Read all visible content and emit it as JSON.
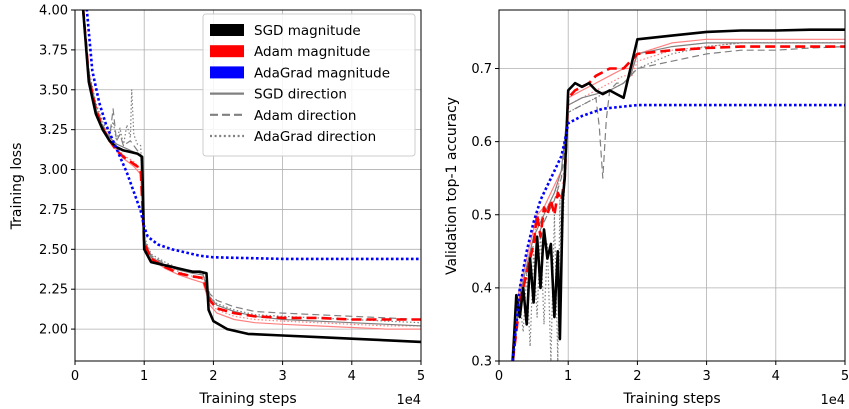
{
  "chart_data": [
    {
      "type": "line",
      "xlabel": "Training steps",
      "ylabel": "Training loss",
      "x_offset_text": "1e4",
      "xlim": [
        0,
        5
      ],
      "ylim": [
        1.8,
        4.0
      ],
      "xticks": [
        0,
        1,
        2,
        3,
        4,
        5
      ],
      "yticks": [
        2.0,
        2.25,
        2.5,
        2.75,
        3.0,
        3.25,
        3.5,
        3.75,
        4.0
      ],
      "ytick_labels": [
        "2.00",
        "2.25",
        "2.50",
        "2.75",
        "3.00",
        "3.25",
        "3.50",
        "3.75",
        "4.00"
      ],
      "grid": true,
      "legend": {
        "placement": "top-right",
        "entries": [
          {
            "label": "SGD magnitude",
            "color": "#000000",
            "style": "patch"
          },
          {
            "label": "Adam magnitude",
            "color": "#ff0000",
            "style": "patch"
          },
          {
            "label": "AdaGrad magnitude",
            "color": "#0000ff",
            "style": "patch"
          },
          {
            "label": "SGD direction",
            "color": "#808080",
            "style": "solid"
          },
          {
            "label": "Adam direction",
            "color": "#808080",
            "style": "dashed"
          },
          {
            "label": "AdaGrad direction",
            "color": "#808080",
            "style": "dotted"
          }
        ]
      },
      "series": [
        {
          "color": "#ff8080",
          "style": "solid",
          "width": 1.2,
          "x": [
            0.1,
            0.2,
            0.3,
            0.4,
            0.55,
            0.7,
            0.85,
            0.95,
            1.0,
            1.1,
            1.3,
            1.5,
            1.7,
            1.85,
            1.95,
            2.05,
            2.3,
            2.6,
            3.0,
            3.5,
            4.0,
            4.5,
            5.0
          ],
          "y": [
            4.1,
            3.6,
            3.38,
            3.25,
            3.15,
            3.07,
            3.02,
            2.97,
            2.52,
            2.44,
            2.38,
            2.34,
            2.31,
            2.29,
            2.15,
            2.1,
            2.06,
            2.04,
            2.03,
            2.02,
            2.01,
            2.0,
            2.0
          ]
        },
        {
          "color": "#ff8080",
          "style": "dotted",
          "width": 1.2,
          "x": [
            0.1,
            0.2,
            0.3,
            0.4,
            0.55,
            0.7,
            0.85,
            0.95,
            1.0,
            1.1,
            1.3,
            1.5,
            1.7,
            1.85,
            1.95,
            2.05,
            2.3,
            2.6,
            3.0,
            3.5,
            4.0,
            4.5,
            5.0
          ],
          "y": [
            4.1,
            3.62,
            3.4,
            3.27,
            3.17,
            3.09,
            3.05,
            3.0,
            2.55,
            2.46,
            2.4,
            2.36,
            2.33,
            2.31,
            2.17,
            2.12,
            2.08,
            2.06,
            2.05,
            2.04,
            2.03,
            2.02,
            2.02
          ]
        },
        {
          "color": "#808080",
          "style": "dotted",
          "width": 1.2,
          "x": [
            0.1,
            0.2,
            0.3,
            0.4,
            0.5,
            0.55,
            0.6,
            0.65,
            0.7,
            0.75,
            0.8,
            0.82,
            0.85,
            0.9,
            0.95,
            1.0,
            1.1,
            1.3,
            1.5,
            1.7,
            1.85,
            1.95,
            2.05,
            2.3,
            2.6,
            3.0,
            3.5,
            4.0,
            4.5,
            5.0
          ],
          "y": [
            4.1,
            3.62,
            3.42,
            3.3,
            3.22,
            3.3,
            3.18,
            3.26,
            3.15,
            3.28,
            3.2,
            3.5,
            3.22,
            3.16,
            3.15,
            2.58,
            2.47,
            2.42,
            2.38,
            2.36,
            2.35,
            2.2,
            2.16,
            2.12,
            2.09,
            2.08,
            2.07,
            2.06,
            2.05,
            2.04
          ]
        },
        {
          "color": "#808080",
          "style": "dashed",
          "width": 1.2,
          "x": [
            0.1,
            0.2,
            0.3,
            0.4,
            0.5,
            0.55,
            0.6,
            0.65,
            0.7,
            0.8,
            0.9,
            0.95,
            1.0,
            1.1,
            1.3,
            1.5,
            1.7,
            1.85,
            1.95,
            2.05,
            2.3,
            2.6,
            3.0,
            3.5,
            4.0,
            4.5,
            5.0
          ],
          "y": [
            4.1,
            3.6,
            3.4,
            3.28,
            3.2,
            3.38,
            3.18,
            3.22,
            3.15,
            3.18,
            3.12,
            3.1,
            2.56,
            2.46,
            2.41,
            2.38,
            2.35,
            2.34,
            2.22,
            2.18,
            2.14,
            2.11,
            2.1,
            2.09,
            2.08,
            2.07,
            2.06
          ]
        },
        {
          "color": "#808080",
          "style": "solid",
          "width": 1.2,
          "x": [
            0.1,
            0.2,
            0.3,
            0.4,
            0.5,
            0.6,
            0.7,
            0.8,
            0.9,
            0.95,
            1.0,
            1.1,
            1.3,
            1.5,
            1.7,
            1.85,
            1.95,
            2.05,
            2.3,
            2.6,
            3.0,
            3.5,
            4.0,
            4.5,
            5.0
          ],
          "y": [
            4.1,
            3.6,
            3.38,
            3.26,
            3.2,
            3.16,
            3.14,
            3.12,
            3.1,
            3.08,
            2.55,
            2.45,
            2.4,
            2.37,
            2.35,
            2.34,
            2.2,
            2.15,
            2.11,
            2.08,
            2.06,
            2.05,
            2.04,
            2.03,
            2.02
          ]
        },
        {
          "color": "#ff0000",
          "style": "dashed",
          "width": 2.6,
          "x": [
            0.1,
            0.2,
            0.3,
            0.4,
            0.5,
            0.6,
            0.7,
            0.8,
            0.9,
            0.95,
            1.0,
            1.1,
            1.3,
            1.5,
            1.7,
            1.85,
            1.95,
            2.05,
            2.3,
            2.6,
            3.0,
            3.5,
            4.0,
            4.5,
            5.0
          ],
          "y": [
            4.1,
            3.58,
            3.38,
            3.26,
            3.18,
            3.12,
            3.08,
            3.05,
            3.02,
            3.0,
            2.54,
            2.44,
            2.39,
            2.35,
            2.33,
            2.32,
            2.18,
            2.13,
            2.1,
            2.08,
            2.07,
            2.07,
            2.06,
            2.06,
            2.06
          ]
        },
        {
          "color": "#000000",
          "style": "solid",
          "width": 2.6,
          "x": [
            0.1,
            0.2,
            0.3,
            0.4,
            0.5,
            0.6,
            0.7,
            0.8,
            0.9,
            0.97,
            1.0,
            1.1,
            1.2,
            1.3,
            1.4,
            1.5,
            1.6,
            1.7,
            1.8,
            1.9,
            1.93,
            2.0,
            2.2,
            2.5,
            3.0,
            3.5,
            4.0,
            4.5,
            5.0
          ],
          "y": [
            4.1,
            3.55,
            3.35,
            3.25,
            3.18,
            3.14,
            3.12,
            3.11,
            3.1,
            3.08,
            2.5,
            2.42,
            2.41,
            2.4,
            2.39,
            2.38,
            2.37,
            2.36,
            2.36,
            2.35,
            2.12,
            2.05,
            2.0,
            1.97,
            1.96,
            1.95,
            1.94,
            1.93,
            1.92
          ]
        },
        {
          "color": "#0000ff",
          "style": "dotted",
          "width": 2.6,
          "x": [
            0.15,
            0.25,
            0.35,
            0.45,
            0.55,
            0.65,
            0.75,
            0.85,
            0.95,
            1.0,
            1.05,
            1.2,
            1.4,
            1.6,
            1.8,
            2.0,
            2.5,
            3.0,
            3.5,
            4.0,
            4.5,
            5.0
          ],
          "y": [
            4.1,
            3.62,
            3.42,
            3.28,
            3.18,
            3.08,
            2.98,
            2.86,
            2.74,
            2.64,
            2.58,
            2.53,
            2.5,
            2.48,
            2.46,
            2.45,
            2.445,
            2.44,
            2.44,
            2.44,
            2.44,
            2.44
          ]
        }
      ]
    },
    {
      "type": "line",
      "xlabel": "Training steps",
      "ylabel": "Validation top-1 accuracy",
      "x_offset_text": "1e4",
      "xlim": [
        0,
        5
      ],
      "ylim": [
        0.3,
        0.78
      ],
      "xticks": [
        0,
        1,
        2,
        3,
        4,
        5
      ],
      "yticks": [
        0.3,
        0.4,
        0.5,
        0.6,
        0.7
      ],
      "ytick_labels": [
        "0.3",
        "0.4",
        "0.5",
        "0.6",
        "0.7"
      ],
      "grid": true,
      "series": [
        {
          "color": "#ff8080",
          "style": "solid",
          "width": 1.2,
          "x": [
            0.18,
            0.25,
            0.35,
            0.45,
            0.55,
            0.65,
            0.75,
            0.85,
            0.95,
            1.0,
            1.2,
            1.4,
            1.6,
            1.8,
            1.92,
            2.0,
            2.5,
            3.0,
            3.5,
            4.0,
            4.5,
            5.0
          ],
          "y": [
            0.3,
            0.38,
            0.42,
            0.46,
            0.5,
            0.51,
            0.53,
            0.55,
            0.57,
            0.66,
            0.67,
            0.68,
            0.69,
            0.7,
            0.7,
            0.72,
            0.735,
            0.74,
            0.74,
            0.74,
            0.74,
            0.74
          ]
        },
        {
          "color": "#ff8080",
          "style": "dotted",
          "width": 1.2,
          "x": [
            0.18,
            0.25,
            0.35,
            0.45,
            0.55,
            0.65,
            0.75,
            0.85,
            0.95,
            1.0,
            1.2,
            1.4,
            1.6,
            1.8,
            1.92,
            2.0,
            2.5,
            3.0,
            3.5,
            4.0,
            4.5,
            5.0
          ],
          "y": [
            0.3,
            0.37,
            0.41,
            0.45,
            0.49,
            0.5,
            0.52,
            0.54,
            0.56,
            0.65,
            0.66,
            0.67,
            0.68,
            0.69,
            0.69,
            0.71,
            0.725,
            0.73,
            0.735,
            0.735,
            0.735,
            0.735
          ]
        },
        {
          "color": "#808080",
          "style": "dotted",
          "width": 1.2,
          "x": [
            0.2,
            0.3,
            0.35,
            0.4,
            0.45,
            0.5,
            0.55,
            0.6,
            0.65,
            0.7,
            0.75,
            0.8,
            0.85,
            0.88,
            0.9,
            0.95,
            1.0,
            1.2,
            1.4,
            1.6,
            1.8,
            2.0,
            2.5,
            3.0,
            3.5,
            4.0,
            4.5,
            5.0
          ],
          "y": [
            0.3,
            0.38,
            0.34,
            0.42,
            0.32,
            0.45,
            0.36,
            0.48,
            0.35,
            0.46,
            0.3,
            0.5,
            0.3,
            0.52,
            0.42,
            0.55,
            0.64,
            0.65,
            0.66,
            0.67,
            0.68,
            0.7,
            0.72,
            0.73,
            0.735,
            0.735,
            0.735,
            0.735
          ]
        },
        {
          "color": "#808080",
          "style": "dashed",
          "width": 1.2,
          "x": [
            0.2,
            0.3,
            0.4,
            0.5,
            0.6,
            0.7,
            0.8,
            0.9,
            1.0,
            1.1,
            1.2,
            1.3,
            1.4,
            1.45,
            1.5,
            1.55,
            1.6,
            1.7,
            1.8,
            1.9,
            2.0,
            2.5,
            3.0,
            3.5,
            4.0,
            4.5,
            5.0
          ],
          "y": [
            0.3,
            0.38,
            0.42,
            0.46,
            0.48,
            0.5,
            0.52,
            0.55,
            0.64,
            0.645,
            0.65,
            0.655,
            0.66,
            0.62,
            0.55,
            0.63,
            0.67,
            0.68,
            0.68,
            0.69,
            0.7,
            0.71,
            0.72,
            0.725,
            0.725,
            0.728,
            0.73
          ]
        },
        {
          "color": "#808080",
          "style": "solid",
          "width": 1.2,
          "x": [
            0.2,
            0.3,
            0.4,
            0.5,
            0.6,
            0.7,
            0.8,
            0.9,
            1.0,
            1.2,
            1.4,
            1.6,
            1.8,
            1.9,
            2.0,
            2.5,
            3.0,
            3.5,
            4.0,
            4.5,
            5.0
          ],
          "y": [
            0.3,
            0.39,
            0.43,
            0.47,
            0.49,
            0.51,
            0.53,
            0.56,
            0.65,
            0.66,
            0.665,
            0.67,
            0.68,
            0.69,
            0.72,
            0.73,
            0.735,
            0.735,
            0.735,
            0.735,
            0.735
          ]
        },
        {
          "color": "#ff0000",
          "style": "dashed",
          "width": 2.6,
          "x": [
            0.2,
            0.3,
            0.4,
            0.5,
            0.55,
            0.6,
            0.65,
            0.7,
            0.75,
            0.8,
            0.85,
            0.9,
            0.95,
            1.0,
            1.1,
            1.2,
            1.3,
            1.4,
            1.5,
            1.6,
            1.7,
            1.8,
            1.9,
            2.0,
            2.5,
            3.0,
            3.5,
            4.0,
            4.5,
            5.0
          ],
          "y": [
            0.3,
            0.38,
            0.42,
            0.46,
            0.5,
            0.47,
            0.51,
            0.5,
            0.52,
            0.5,
            0.53,
            0.52,
            0.55,
            0.66,
            0.67,
            0.675,
            0.68,
            0.69,
            0.695,
            0.7,
            0.7,
            0.7,
            0.71,
            0.72,
            0.725,
            0.728,
            0.73,
            0.73,
            0.73,
            0.73
          ]
        },
        {
          "color": "#000000",
          "style": "solid",
          "width": 2.6,
          "x": [
            0.2,
            0.25,
            0.3,
            0.35,
            0.4,
            0.45,
            0.5,
            0.55,
            0.6,
            0.65,
            0.7,
            0.75,
            0.8,
            0.85,
            0.88,
            0.92,
            0.95,
            1.0,
            1.1,
            1.2,
            1.3,
            1.4,
            1.5,
            1.6,
            1.7,
            1.8,
            1.85,
            1.9,
            2.0,
            2.5,
            3.0,
            3.5,
            4.0,
            4.5,
            5.0
          ],
          "y": [
            0.3,
            0.39,
            0.36,
            0.4,
            0.35,
            0.44,
            0.38,
            0.47,
            0.4,
            0.48,
            0.44,
            0.46,
            0.36,
            0.45,
            0.33,
            0.52,
            0.55,
            0.67,
            0.68,
            0.675,
            0.68,
            0.67,
            0.665,
            0.67,
            0.665,
            0.66,
            0.68,
            0.7,
            0.74,
            0.745,
            0.75,
            0.752,
            0.752,
            0.753,
            0.753
          ]
        },
        {
          "color": "#0000ff",
          "style": "dotted",
          "width": 2.6,
          "x": [
            0.2,
            0.3,
            0.4,
            0.5,
            0.6,
            0.7,
            0.8,
            0.9,
            0.95,
            1.0,
            1.2,
            1.5,
            2.0,
            2.5,
            3.0,
            3.5,
            4.0,
            4.5,
            5.0
          ],
          "y": [
            0.3,
            0.4,
            0.45,
            0.49,
            0.52,
            0.54,
            0.56,
            0.58,
            0.6,
            0.625,
            0.635,
            0.645,
            0.65,
            0.65,
            0.65,
            0.65,
            0.65,
            0.65,
            0.65
          ]
        }
      ]
    }
  ]
}
